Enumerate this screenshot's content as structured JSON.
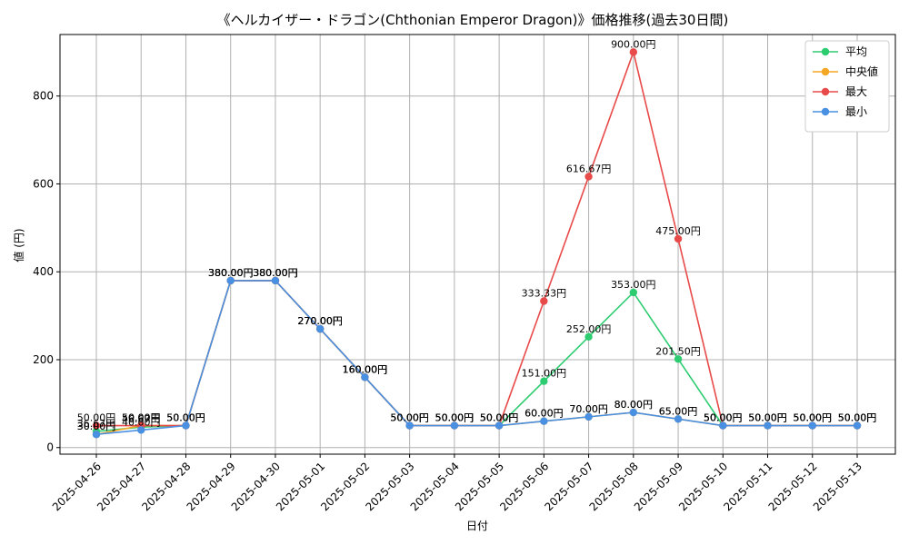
{
  "chart_data": {
    "type": "line",
    "title": "《ヘルカイザー・ドラゴン(Chthonian Emperor Dragon)》価格推移(過去30日間)",
    "xlabel": "日付",
    "ylabel": "値 (円)",
    "ylim": [
      -15,
      940
    ],
    "yticks": [
      0,
      200,
      400,
      600,
      800
    ],
    "grid": true,
    "legend_position": "top-right",
    "label_suffix": "円",
    "categories": [
      "2025-04-26",
      "2025-04-27",
      "2025-04-28",
      "2025-04-29",
      "2025-04-30",
      "2025-05-01",
      "2025-05-02",
      "2025-05-03",
      "2025-05-04",
      "2025-05-05",
      "2025-05-06",
      "2025-05-07",
      "2025-05-08",
      "2025-05-09",
      "2025-05-10",
      "2025-05-11",
      "2025-05-12",
      "2025-05-13"
    ],
    "series": [
      {
        "name": "平均",
        "color": "#2ecc71",
        "values": [
          36.67,
          46.67,
          50,
          380,
          380,
          270,
          160,
          50,
          50,
          50,
          151,
          252,
          353,
          201.5,
          50,
          50,
          50,
          50
        ]
      },
      {
        "name": "中央値",
        "color": "#f5a623",
        "values": [
          30,
          50,
          50,
          380,
          380,
          270,
          160,
          50,
          50,
          50,
          60,
          70,
          80,
          65,
          50,
          50,
          50,
          50
        ]
      },
      {
        "name": "最大",
        "color": "#e84a4a",
        "values": [
          50,
          50,
          50,
          380,
          380,
          270,
          160,
          50,
          50,
          50,
          333.33,
          616.67,
          900,
          475,
          50,
          50,
          50,
          50
        ]
      },
      {
        "name": "最小",
        "color": "#4a90e2",
        "values": [
          30,
          40,
          50,
          380,
          380,
          270,
          160,
          50,
          50,
          50,
          60,
          70,
          80,
          65,
          50,
          50,
          50,
          50
        ]
      }
    ]
  }
}
